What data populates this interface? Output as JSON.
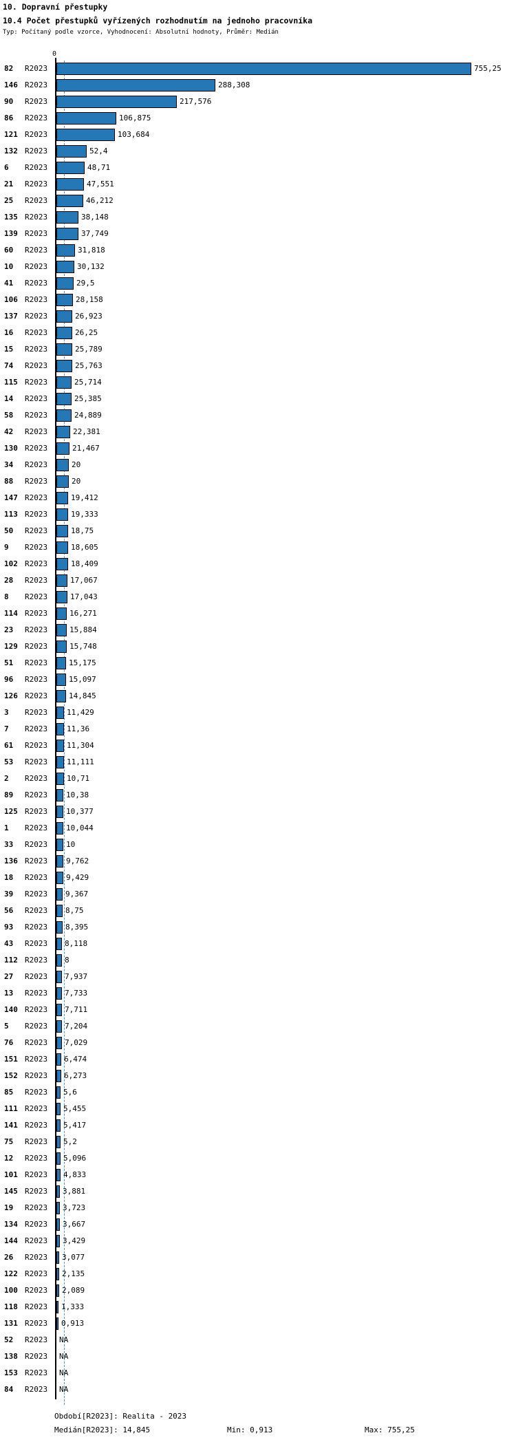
{
  "chart_data": {
    "type": "bar",
    "orientation": "horizontal",
    "title": "10. Dopravní přestupky",
    "subtitle": "10.4 Počet přestupků vyřízených rozhodnutím na jednoho pracovníka",
    "meta": "Typ: Počítaný podle vzorce, Vyhodnocení: Absolutní hodnoty, Průměr: Medián",
    "axis": {
      "zero_label": "0",
      "xmin": 0,
      "xmax": 755.25
    },
    "median_value": 14.845,
    "legend": "R2023",
    "grid": false,
    "colors": {
      "bar": "#2478b5",
      "bar_border": "#000000",
      "median_line": "#4d94c8",
      "axis": "#000000"
    },
    "rows": [
      {
        "id": "82",
        "series": "R2023",
        "value": 755.25,
        "label": "755,25"
      },
      {
        "id": "146",
        "series": "R2023",
        "value": 288.308,
        "label": "288,308"
      },
      {
        "id": "90",
        "series": "R2023",
        "value": 217.576,
        "label": "217,576"
      },
      {
        "id": "86",
        "series": "R2023",
        "value": 106.875,
        "label": "106,875"
      },
      {
        "id": "121",
        "series": "R2023",
        "value": 103.684,
        "label": "103,684"
      },
      {
        "id": "132",
        "series": "R2023",
        "value": 52.4,
        "label": "52,4"
      },
      {
        "id": "6",
        "series": "R2023",
        "value": 48.71,
        "label": "48,71"
      },
      {
        "id": "21",
        "series": "R2023",
        "value": 47.551,
        "label": "47,551"
      },
      {
        "id": "25",
        "series": "R2023",
        "value": 46.212,
        "label": "46,212"
      },
      {
        "id": "135",
        "series": "R2023",
        "value": 38.148,
        "label": "38,148"
      },
      {
        "id": "139",
        "series": "R2023",
        "value": 37.749,
        "label": "37,749"
      },
      {
        "id": "60",
        "series": "R2023",
        "value": 31.818,
        "label": "31,818"
      },
      {
        "id": "10",
        "series": "R2023",
        "value": 30.132,
        "label": "30,132"
      },
      {
        "id": "41",
        "series": "R2023",
        "value": 29.5,
        "label": "29,5"
      },
      {
        "id": "106",
        "series": "R2023",
        "value": 28.158,
        "label": "28,158"
      },
      {
        "id": "137",
        "series": "R2023",
        "value": 26.923,
        "label": "26,923"
      },
      {
        "id": "16",
        "series": "R2023",
        "value": 26.25,
        "label": "26,25"
      },
      {
        "id": "15",
        "series": "R2023",
        "value": 25.789,
        "label": "25,789"
      },
      {
        "id": "74",
        "series": "R2023",
        "value": 25.763,
        "label": "25,763"
      },
      {
        "id": "115",
        "series": "R2023",
        "value": 25.714,
        "label": "25,714"
      },
      {
        "id": "14",
        "series": "R2023",
        "value": 25.385,
        "label": "25,385"
      },
      {
        "id": "58",
        "series": "R2023",
        "value": 24.889,
        "label": "24,889"
      },
      {
        "id": "42",
        "series": "R2023",
        "value": 22.381,
        "label": "22,381"
      },
      {
        "id": "130",
        "series": "R2023",
        "value": 21.467,
        "label": "21,467"
      },
      {
        "id": "34",
        "series": "R2023",
        "value": 20,
        "label": "20"
      },
      {
        "id": "88",
        "series": "R2023",
        "value": 20,
        "label": "20"
      },
      {
        "id": "147",
        "series": "R2023",
        "value": 19.412,
        "label": "19,412"
      },
      {
        "id": "113",
        "series": "R2023",
        "value": 19.333,
        "label": "19,333"
      },
      {
        "id": "50",
        "series": "R2023",
        "value": 18.75,
        "label": "18,75"
      },
      {
        "id": "9",
        "series": "R2023",
        "value": 18.605,
        "label": "18,605"
      },
      {
        "id": "102",
        "series": "R2023",
        "value": 18.409,
        "label": "18,409"
      },
      {
        "id": "28",
        "series": "R2023",
        "value": 17.067,
        "label": "17,067"
      },
      {
        "id": "8",
        "series": "R2023",
        "value": 17.043,
        "label": "17,043"
      },
      {
        "id": "114",
        "series": "R2023",
        "value": 16.271,
        "label": "16,271"
      },
      {
        "id": "23",
        "series": "R2023",
        "value": 15.884,
        "label": "15,884"
      },
      {
        "id": "129",
        "series": "R2023",
        "value": 15.748,
        "label": "15,748"
      },
      {
        "id": "51",
        "series": "R2023",
        "value": 15.175,
        "label": "15,175"
      },
      {
        "id": "96",
        "series": "R2023",
        "value": 15.097,
        "label": "15,097"
      },
      {
        "id": "126",
        "series": "R2023",
        "value": 14.845,
        "label": "14,845"
      },
      {
        "id": "3",
        "series": "R2023",
        "value": 11.429,
        "label": "11,429"
      },
      {
        "id": "7",
        "series": "R2023",
        "value": 11.36,
        "label": "11,36"
      },
      {
        "id": "61",
        "series": "R2023",
        "value": 11.304,
        "label": "11,304"
      },
      {
        "id": "53",
        "series": "R2023",
        "value": 11.111,
        "label": "11,111"
      },
      {
        "id": "2",
        "series": "R2023",
        "value": 10.71,
        "label": "10,71"
      },
      {
        "id": "89",
        "series": "R2023",
        "value": 10.38,
        "label": "10,38"
      },
      {
        "id": "125",
        "series": "R2023",
        "value": 10.377,
        "label": "10,377"
      },
      {
        "id": "1",
        "series": "R2023",
        "value": 10.044,
        "label": "10,044"
      },
      {
        "id": "33",
        "series": "R2023",
        "value": 10,
        "label": "10"
      },
      {
        "id": "136",
        "series": "R2023",
        "value": 9.762,
        "label": "9,762"
      },
      {
        "id": "18",
        "series": "R2023",
        "value": 9.429,
        "label": "9,429"
      },
      {
        "id": "39",
        "series": "R2023",
        "value": 9.367,
        "label": "9,367"
      },
      {
        "id": "56",
        "series": "R2023",
        "value": 8.75,
        "label": "8,75"
      },
      {
        "id": "93",
        "series": "R2023",
        "value": 8.395,
        "label": "8,395"
      },
      {
        "id": "43",
        "series": "R2023",
        "value": 8.118,
        "label": "8,118"
      },
      {
        "id": "112",
        "series": "R2023",
        "value": 8,
        "label": "8"
      },
      {
        "id": "27",
        "series": "R2023",
        "value": 7.937,
        "label": "7,937"
      },
      {
        "id": "13",
        "series": "R2023",
        "value": 7.733,
        "label": "7,733"
      },
      {
        "id": "140",
        "series": "R2023",
        "value": 7.711,
        "label": "7,711"
      },
      {
        "id": "5",
        "series": "R2023",
        "value": 7.204,
        "label": "7,204"
      },
      {
        "id": "76",
        "series": "R2023",
        "value": 7.029,
        "label": "7,029"
      },
      {
        "id": "151",
        "series": "R2023",
        "value": 6.474,
        "label": "6,474"
      },
      {
        "id": "152",
        "series": "R2023",
        "value": 6.273,
        "label": "6,273"
      },
      {
        "id": "85",
        "series": "R2023",
        "value": 5.6,
        "label": "5,6"
      },
      {
        "id": "111",
        "series": "R2023",
        "value": 5.455,
        "label": "5,455"
      },
      {
        "id": "141",
        "series": "R2023",
        "value": 5.417,
        "label": "5,417"
      },
      {
        "id": "75",
        "series": "R2023",
        "value": 5.2,
        "label": "5,2"
      },
      {
        "id": "12",
        "series": "R2023",
        "value": 5.096,
        "label": "5,096"
      },
      {
        "id": "101",
        "series": "R2023",
        "value": 4.833,
        "label": "4,833"
      },
      {
        "id": "145",
        "series": "R2023",
        "value": 3.881,
        "label": "3,881"
      },
      {
        "id": "19",
        "series": "R2023",
        "value": 3.723,
        "label": "3,723"
      },
      {
        "id": "134",
        "series": "R2023",
        "value": 3.667,
        "label": "3,667"
      },
      {
        "id": "144",
        "series": "R2023",
        "value": 3.429,
        "label": "3,429"
      },
      {
        "id": "26",
        "series": "R2023",
        "value": 3.077,
        "label": "3,077"
      },
      {
        "id": "122",
        "series": "R2023",
        "value": 2.135,
        "label": "2,135"
      },
      {
        "id": "100",
        "series": "R2023",
        "value": 2.089,
        "label": "2,089"
      },
      {
        "id": "118",
        "series": "R2023",
        "value": 1.333,
        "label": "1,333"
      },
      {
        "id": "131",
        "series": "R2023",
        "value": 0.913,
        "label": "0,913"
      },
      {
        "id": "52",
        "series": "R2023",
        "value": null,
        "label": "NA"
      },
      {
        "id": "138",
        "series": "R2023",
        "value": null,
        "label": "NA"
      },
      {
        "id": "153",
        "series": "R2023",
        "value": null,
        "label": "NA"
      },
      {
        "id": "84",
        "series": "R2023",
        "value": null,
        "label": "NA"
      }
    ],
    "footer": {
      "period": "Období[R2023]: Realita - 2023",
      "median": "Medián[R2023]: 14,845",
      "min": "Min: 0,913",
      "max": "Max: 755,25"
    }
  }
}
